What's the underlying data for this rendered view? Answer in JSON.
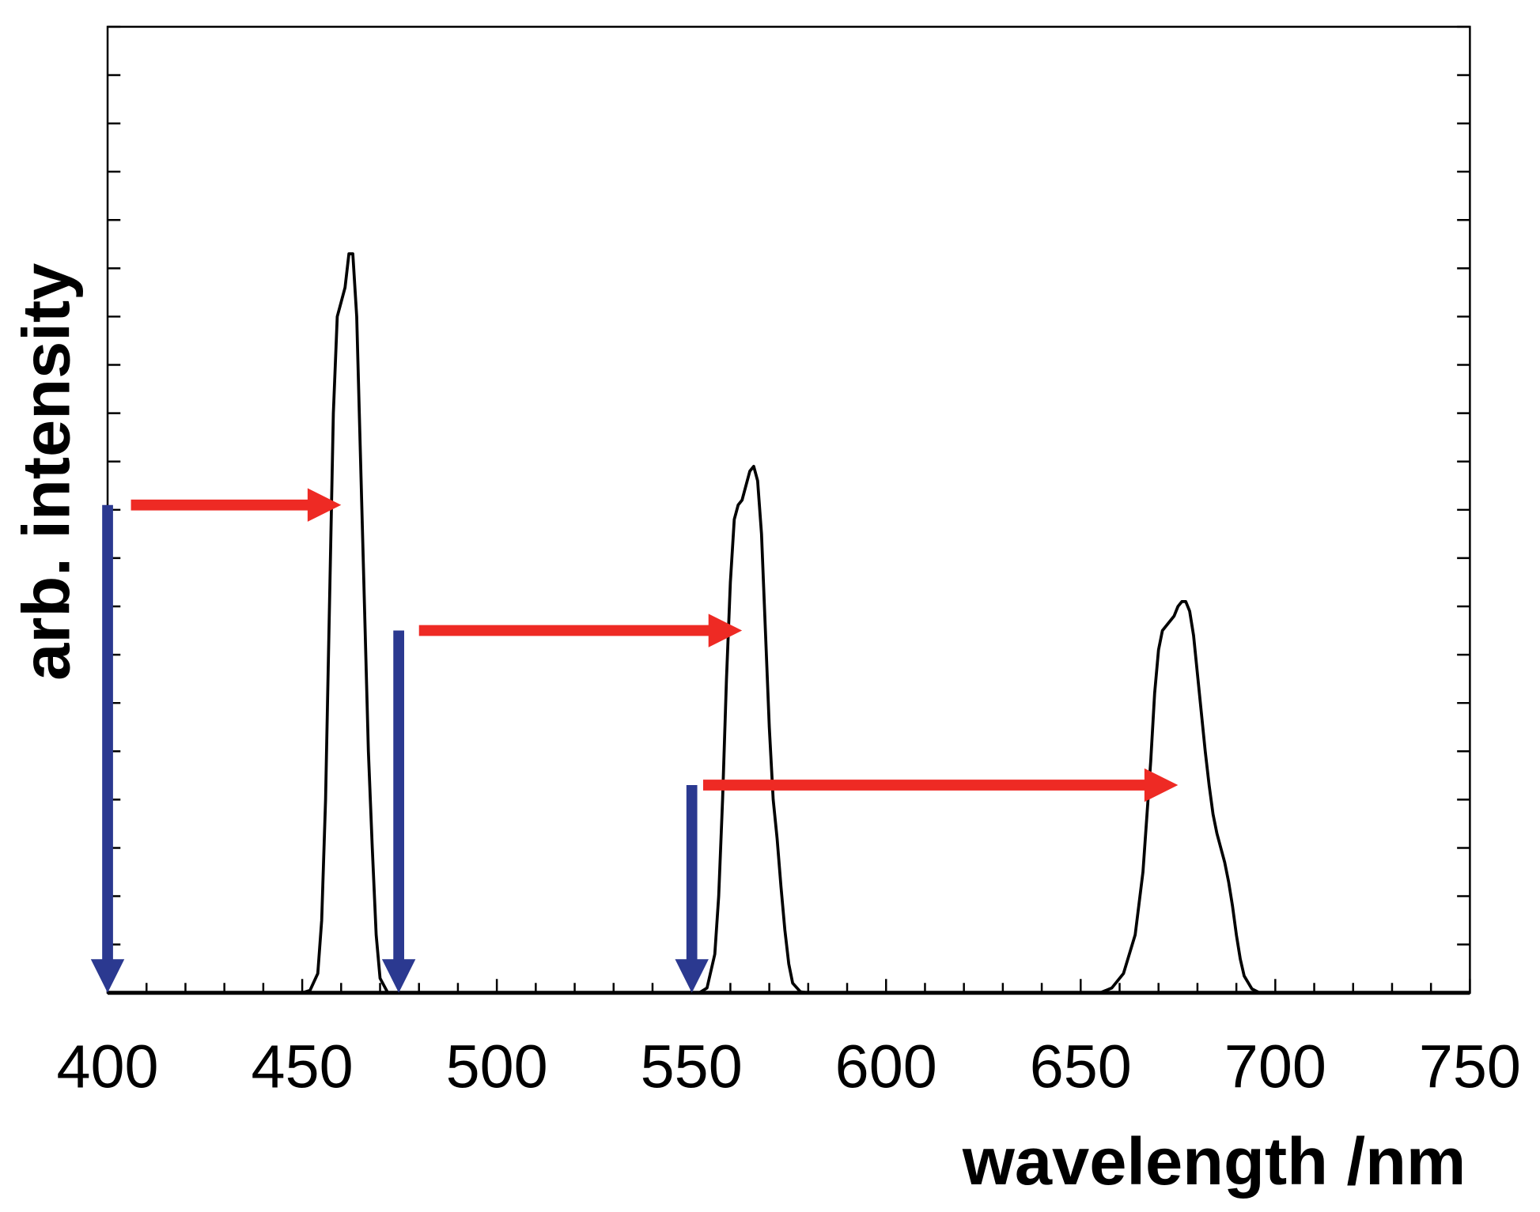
{
  "chart_data": {
    "type": "line",
    "xlabel": "wavelength /nm",
    "ylabel": "arb. intensity",
    "xlim": [
      400,
      750
    ],
    "xticks": [
      400,
      450,
      500,
      550,
      600,
      650,
      700,
      750
    ],
    "xminor_ticks": [
      410,
      420,
      430,
      440,
      460,
      470,
      480,
      490,
      510,
      520,
      530,
      540,
      560,
      570,
      580,
      590,
      610,
      620,
      630,
      640,
      660,
      670,
      680,
      690,
      710,
      720,
      730,
      740
    ],
    "ylim": [
      0,
      20
    ],
    "yticks": [
      0,
      1,
      2,
      3,
      4,
      5,
      6,
      7,
      8,
      9,
      10,
      11,
      12,
      13,
      14,
      15,
      16,
      17,
      18,
      19,
      20
    ],
    "series": [
      {
        "color": "#000000",
        "x": [
          400,
          450,
          452,
          454,
          455,
          456,
          457,
          458,
          459,
          460,
          461,
          462,
          463,
          464,
          465,
          466,
          467,
          468,
          469,
          470,
          472,
          552,
          554,
          556,
          557,
          558,
          559,
          560,
          561,
          562,
          563,
          564,
          565,
          566,
          567,
          568,
          569,
          570,
          571,
          572,
          573,
          574,
          575,
          576,
          578,
          580,
          655,
          658,
          661,
          664,
          666,
          668,
          669,
          670,
          671,
          672,
          673,
          674,
          675,
          676,
          677,
          678,
          679,
          680,
          681,
          682,
          683,
          684,
          685,
          686,
          687,
          688,
          689,
          690,
          691,
          692,
          694,
          696,
          750
        ],
        "values": [
          0,
          0,
          0.05,
          0.4,
          1.5,
          4,
          8,
          12,
          14,
          14.3,
          14.6,
          15.3,
          15.3,
          14,
          11,
          8,
          5,
          3,
          1.2,
          0.3,
          0,
          0,
          0.1,
          0.8,
          2,
          4,
          6.5,
          8.5,
          9.8,
          10.1,
          10.2,
          10.5,
          10.8,
          10.9,
          10.6,
          9.5,
          7.5,
          5.5,
          4,
          3.2,
          2.2,
          1.3,
          0.6,
          0.2,
          0.02,
          0,
          0,
          0.1,
          0.4,
          1.2,
          2.5,
          4.8,
          6.2,
          7.1,
          7.5,
          7.6,
          7.7,
          7.8,
          8.0,
          8.1,
          8.1,
          7.9,
          7.4,
          6.6,
          5.8,
          5,
          4.3,
          3.7,
          3.3,
          3.0,
          2.7,
          2.3,
          1.8,
          1.2,
          0.7,
          0.35,
          0.08,
          0,
          0
        ]
      }
    ],
    "down_arrows": {
      "color": "#2b3990",
      "x": [
        400,
        474.8,
        550.1
      ],
      "from": [
        10.1,
        7.5,
        4.3
      ]
    },
    "right_arrows": {
      "color": "#ee2a24",
      "from": [
        406,
        480,
        553
      ],
      "to": [
        460,
        563,
        675
      ],
      "y": [
        10.1,
        7.5,
        4.3
      ]
    }
  }
}
